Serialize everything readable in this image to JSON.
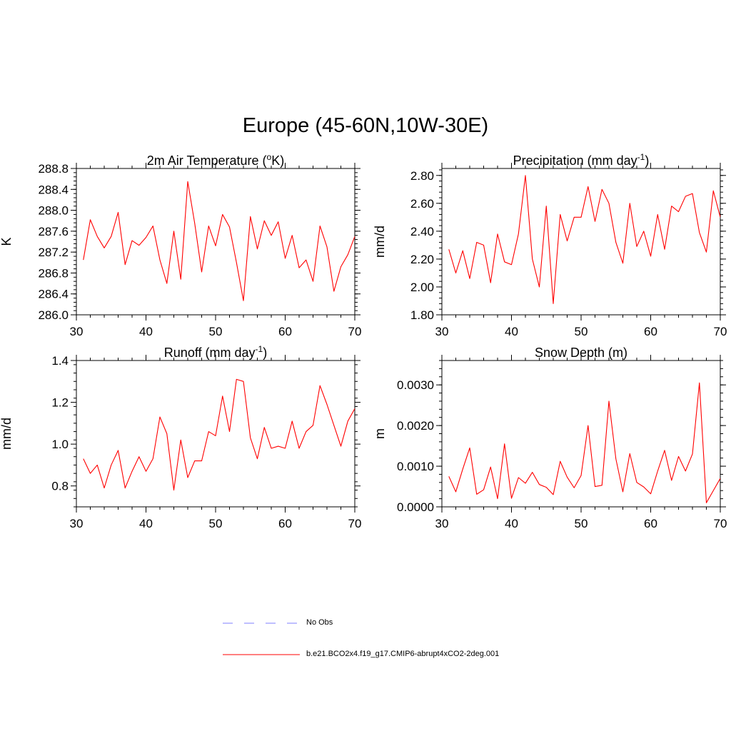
{
  "figure_title": "Europe (45-60N,10W-30E)",
  "chart_data": [
    {
      "type": "line",
      "title": "2m Air Temperature (",
      "title_sup": "o",
      "title_tail": "K)",
      "xlabel": "",
      "ylabel": "K",
      "xlim": [
        30,
        70
      ],
      "ylim": [
        286.0,
        288.8
      ],
      "x_ticks": [
        30,
        40,
        50,
        60,
        70
      ],
      "x_tick_labels": [
        "30",
        "40",
        "50",
        "60",
        "70"
      ],
      "y_ticks": [
        286.0,
        286.4,
        286.8,
        287.2,
        287.6,
        288.0,
        288.4,
        288.8
      ],
      "y_tick_labels": [
        "286.0",
        "286.4",
        "286.8",
        "287.2",
        "287.6",
        "288.0",
        "288.4",
        "288.8"
      ],
      "series": [
        {
          "name": "b.e21.BCO2x4.f19_g17.CMIP6-abrupt4xCO2-2deg.001",
          "color": "#ff0000",
          "x": [
            31,
            32,
            33,
            34,
            35,
            36,
            37,
            38,
            39,
            40,
            41,
            42,
            43,
            44,
            45,
            46,
            47,
            48,
            49,
            50,
            51,
            52,
            53,
            54,
            55,
            56,
            57,
            58,
            59,
            60,
            61,
            62,
            63,
            64,
            65,
            66,
            67,
            68,
            69,
            70
          ],
          "values": [
            287.05,
            287.82,
            287.5,
            287.28,
            287.5,
            287.96,
            286.96,
            287.42,
            287.33,
            287.48,
            287.7,
            287.05,
            286.6,
            287.6,
            286.68,
            288.55,
            287.75,
            286.82,
            287.7,
            287.32,
            287.92,
            287.68,
            287.0,
            286.27,
            287.88,
            287.26,
            287.8,
            287.52,
            287.78,
            287.08,
            287.52,
            286.9,
            287.05,
            286.64,
            287.7,
            287.3,
            286.45,
            286.92,
            287.15,
            287.5
          ]
        }
      ]
    },
    {
      "type": "line",
      "title": "Precipitation (mm day",
      "title_sup": "-1",
      "title_tail": ")",
      "xlabel": "",
      "ylabel": "mm/d",
      "xlim": [
        30,
        70
      ],
      "ylim": [
        1.8,
        2.85
      ],
      "x_ticks": [
        30,
        40,
        50,
        60,
        70
      ],
      "x_tick_labels": [
        "30",
        "40",
        "50",
        "60",
        "70"
      ],
      "y_ticks": [
        1.8,
        2.0,
        2.2,
        2.4,
        2.6,
        2.8
      ],
      "y_tick_labels": [
        "1.80",
        "2.00",
        "2.20",
        "2.40",
        "2.60",
        "2.80"
      ],
      "series": [
        {
          "name": "b.e21.BCO2x4.f19_g17.CMIP6-abrupt4xCO2-2deg.001",
          "color": "#ff0000",
          "x": [
            31,
            32,
            33,
            34,
            35,
            36,
            37,
            38,
            39,
            40,
            41,
            42,
            43,
            44,
            45,
            46,
            47,
            48,
            49,
            50,
            51,
            52,
            53,
            54,
            55,
            56,
            57,
            58,
            59,
            60,
            61,
            62,
            63,
            64,
            65,
            66,
            67,
            68,
            69,
            70
          ],
          "values": [
            2.27,
            2.1,
            2.26,
            2.06,
            2.32,
            2.3,
            2.03,
            2.38,
            2.18,
            2.16,
            2.38,
            2.8,
            2.2,
            2.0,
            2.58,
            1.88,
            2.52,
            2.33,
            2.5,
            2.5,
            2.72,
            2.47,
            2.7,
            2.6,
            2.32,
            2.17,
            2.6,
            2.29,
            2.4,
            2.22,
            2.52,
            2.27,
            2.58,
            2.54,
            2.65,
            2.67,
            2.39,
            2.25,
            2.69,
            2.5
          ]
        }
      ]
    },
    {
      "type": "line",
      "title": "Runoff (mm day",
      "title_sup": "-1",
      "title_tail": ")",
      "xlabel": "",
      "ylabel": "mm/d",
      "xlim": [
        30,
        70
      ],
      "ylim": [
        0.7,
        1.4
      ],
      "x_ticks": [
        30,
        40,
        50,
        60,
        70
      ],
      "x_tick_labels": [
        "30",
        "40",
        "50",
        "60",
        "70"
      ],
      "y_ticks": [
        0.8,
        1.0,
        1.2,
        1.4
      ],
      "y_tick_labels": [
        "0.8",
        "1.0",
        "1.2",
        "1.4"
      ],
      "series": [
        {
          "name": "b.e21.BCO2x4.f19_g17.CMIP6-abrupt4xCO2-2deg.001",
          "color": "#ff0000",
          "x": [
            31,
            32,
            33,
            34,
            35,
            36,
            37,
            38,
            39,
            40,
            41,
            42,
            43,
            44,
            45,
            46,
            47,
            48,
            49,
            50,
            51,
            52,
            53,
            54,
            55,
            56,
            57,
            58,
            59,
            60,
            61,
            62,
            63,
            64,
            65,
            66,
            67,
            68,
            69,
            70
          ],
          "values": [
            0.93,
            0.86,
            0.9,
            0.79,
            0.9,
            0.97,
            0.79,
            0.87,
            0.94,
            0.87,
            0.93,
            1.13,
            1.05,
            0.78,
            1.02,
            0.84,
            0.92,
            0.92,
            1.06,
            1.04,
            1.23,
            1.06,
            1.31,
            1.3,
            1.03,
            0.93,
            1.08,
            0.98,
            0.99,
            0.98,
            1.11,
            0.98,
            1.06,
            1.09,
            1.28,
            1.19,
            1.09,
            0.99,
            1.11,
            1.17
          ]
        }
      ]
    },
    {
      "type": "line",
      "title": "Snow Depth (m)",
      "title_sup": "",
      "title_tail": "",
      "xlabel": "",
      "ylabel": "m",
      "xlim": [
        30,
        70
      ],
      "ylim": [
        0.0,
        0.0036
      ],
      "x_ticks": [
        30,
        40,
        50,
        60,
        70
      ],
      "x_tick_labels": [
        "30",
        "40",
        "50",
        "60",
        "70"
      ],
      "y_ticks": [
        0.0,
        0.001,
        0.002,
        0.003
      ],
      "y_tick_labels": [
        "0.0000",
        "0.0010",
        "0.0020",
        "0.0030"
      ],
      "series": [
        {
          "name": "b.e21.BCO2x4.f19_g17.CMIP6-abrupt4xCO2-2deg.001",
          "color": "#ff0000",
          "x": [
            31,
            32,
            33,
            34,
            35,
            36,
            37,
            38,
            39,
            40,
            41,
            42,
            43,
            44,
            45,
            46,
            47,
            48,
            49,
            50,
            51,
            52,
            53,
            54,
            55,
            56,
            57,
            58,
            59,
            60,
            61,
            62,
            63,
            64,
            65,
            66,
            67,
            68,
            69,
            70
          ],
          "values": [
            0.00075,
            0.00037,
            0.00093,
            0.00145,
            0.00031,
            0.00042,
            0.00098,
            0.0002,
            0.00155,
            0.00021,
            0.00072,
            0.00058,
            0.00085,
            0.00055,
            0.00048,
            0.0003,
            0.00112,
            0.00073,
            0.00047,
            0.00077,
            0.002,
            0.0005,
            0.00053,
            0.0026,
            0.00118,
            0.00037,
            0.00131,
            0.0006,
            0.00049,
            0.00032,
            0.00088,
            0.00139,
            0.00065,
            0.00124,
            0.00088,
            0.0013,
            0.00305,
            0.0001,
            0.0004,
            0.0007
          ]
        }
      ]
    }
  ],
  "legend": {
    "entries": [
      {
        "label": "No Obs",
        "color": "#9999ff",
        "style": "dashed"
      },
      {
        "label": "b.e21.BCO2x4.f19_g17.CMIP6-abrupt4xCO2-2deg.001",
        "color": "#ff0000",
        "style": "solid"
      }
    ]
  }
}
